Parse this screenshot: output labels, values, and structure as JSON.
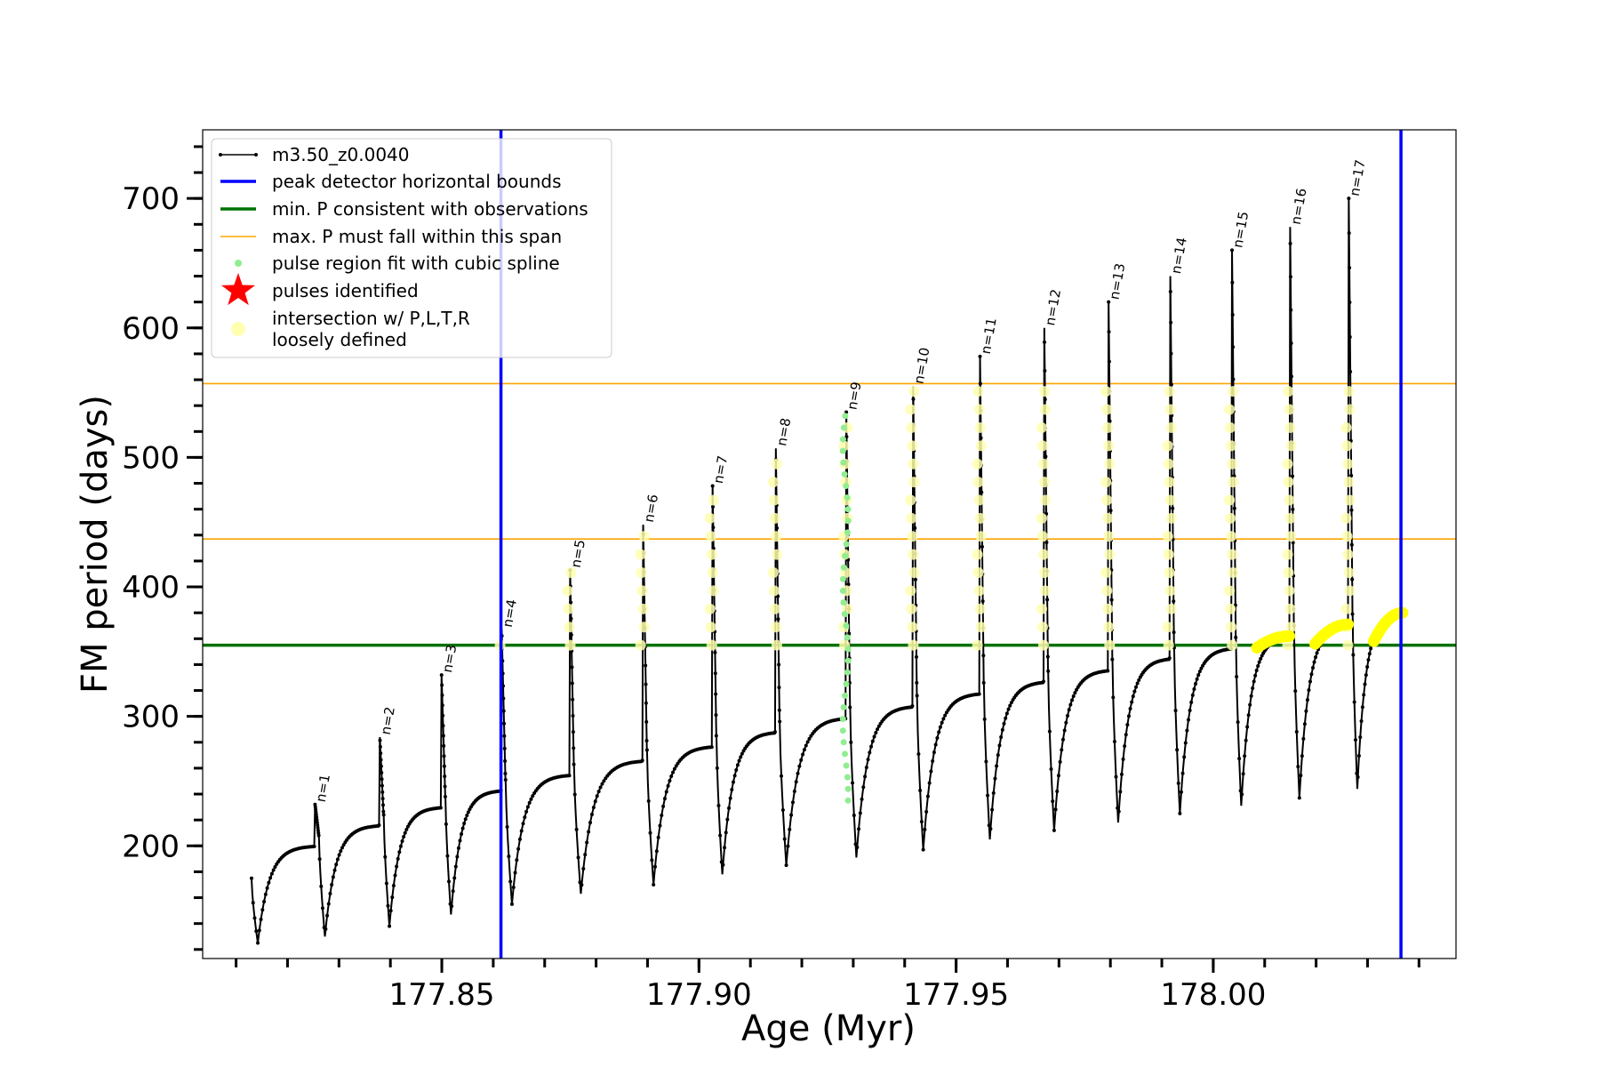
{
  "chart_data": {
    "type": "line",
    "title": "",
    "xlabel": "Age (Myr)",
    "ylabel": "FM period (days)",
    "xlim": [
      177.8035,
      178.0472
    ],
    "ylim": [
      113,
      753
    ],
    "x_ticks": [
      177.85,
      177.9,
      177.95,
      178.0
    ],
    "x_tick_labels": [
      "177.85",
      "177.90",
      "177.95",
      "178.00"
    ],
    "y_ticks": [
      200,
      300,
      400,
      500,
      600,
      700
    ],
    "y_tick_labels": [
      "200",
      "300",
      "400",
      "500",
      "600",
      "700"
    ],
    "x_minor_tick_step": 0.01,
    "y_minor_tick_step": 20,
    "grid": false,
    "legend_position": "top-left",
    "legend": [
      {
        "label": "m3.50_z0.0040",
        "kind": "line-marker",
        "color": "#000000"
      },
      {
        "label": "peak detector horizontal bounds",
        "kind": "line",
        "color": "#0000ff"
      },
      {
        "label": "min. P consistent with observations",
        "kind": "line",
        "color": "#007000"
      },
      {
        "label": "max. P must fall within this span",
        "kind": "thin-line",
        "color": "#ffa500"
      },
      {
        "label": "pulse region fit with cubic spline",
        "kind": "dot",
        "color": "#90ee90"
      },
      {
        "label": "pulses identified",
        "kind": "star",
        "color": "#ff0000"
      },
      {
        "label": "intersection w/ P,L,T,R",
        "label2": "loosely defined",
        "kind": "big-dot",
        "color": "#ffffb0"
      }
    ],
    "vertical_lines": [
      {
        "name": "peak detector horizontal bounds",
        "x": 177.8615,
        "color": "#0000ff"
      },
      {
        "name": "peak detector horizontal bounds",
        "x": 178.0365,
        "color": "#0000ff"
      }
    ],
    "horizontal_lines": [
      {
        "name": "min. P consistent with observations",
        "y": 355,
        "color": "#007000"
      },
      {
        "name": "max. P must fall within this span",
        "y": 437,
        "color": "#ffa500"
      },
      {
        "name": "max. P must fall within this span",
        "y": 557,
        "color": "#ffa500"
      }
    ],
    "series": [
      {
        "name": "m3.50_z0.0040",
        "color": "#000000",
        "start": {
          "x": 177.813,
          "y": 175
        },
        "pulses": [
          {
            "label": "n=1",
            "x": 177.8252,
            "pre": 200,
            "peak": 232,
            "min": 130
          },
          {
            "label": "n=2",
            "x": 177.8378,
            "pre": 216,
            "peak": 284,
            "min": 138
          },
          {
            "label": "n=3",
            "x": 177.8498,
            "pre": 230,
            "peak": 332,
            "min": 147
          },
          {
            "label": "n=4",
            "x": 177.8615,
            "pre": 243,
            "peak": 367,
            "min": 155
          },
          {
            "label": "n=5",
            "x": 177.8748,
            "pre": 255,
            "peak": 413,
            "min": 163
          },
          {
            "label": "n=6",
            "x": 177.889,
            "pre": 266,
            "peak": 448,
            "min": 170
          },
          {
            "label": "n=7",
            "x": 177.9025,
            "pre": 277,
            "peak": 478,
            "min": 178
          },
          {
            "label": "n=8",
            "x": 177.9148,
            "pre": 288,
            "peak": 507,
            "min": 185
          },
          {
            "label": "n=9",
            "x": 177.9285,
            "pre": 299,
            "peak": 535,
            "min": 191
          },
          {
            "label": "n=10",
            "x": 177.9415,
            "pre": 308,
            "peak": 555,
            "min": 197
          },
          {
            "label": "n=11",
            "x": 177.9545,
            "pre": 318,
            "peak": 578,
            "min": 205
          },
          {
            "label": "n=12",
            "x": 177.967,
            "pre": 327,
            "peak": 600,
            "min": 212
          },
          {
            "label": "n=13",
            "x": 177.9795,
            "pre": 336,
            "peak": 620,
            "min": 218
          },
          {
            "label": "n=14",
            "x": 177.9915,
            "pre": 345,
            "peak": 640,
            "min": 225
          },
          {
            "label": "n=15",
            "x": 178.0035,
            "pre": 353,
            "peak": 660,
            "min": 231
          },
          {
            "label": "n=16",
            "x": 178.0148,
            "pre": 362,
            "peak": 678,
            "min": 237
          },
          {
            "label": "n=17",
            "x": 178.0262,
            "pre": 371,
            "peak": 700,
            "min": 244
          }
        ],
        "end": {
          "x": 178.0362,
          "y": 380
        }
      },
      {
        "name": "pulse region fit with cubic spline",
        "color": "#90ee90",
        "x": 177.9285,
        "y_range": [
          235,
          535
        ]
      }
    ],
    "yellow_arcs": [
      {
        "x_start": 178.0085,
        "x_end": 178.0148,
        "y_start": 353,
        "y_end": 362
      },
      {
        "x_start": 178.0198,
        "x_end": 178.0262,
        "y_start": 356,
        "y_end": 371
      },
      {
        "x_start": 178.0312,
        "x_end": 178.0368,
        "y_start": 358,
        "y_end": 380
      }
    ]
  }
}
